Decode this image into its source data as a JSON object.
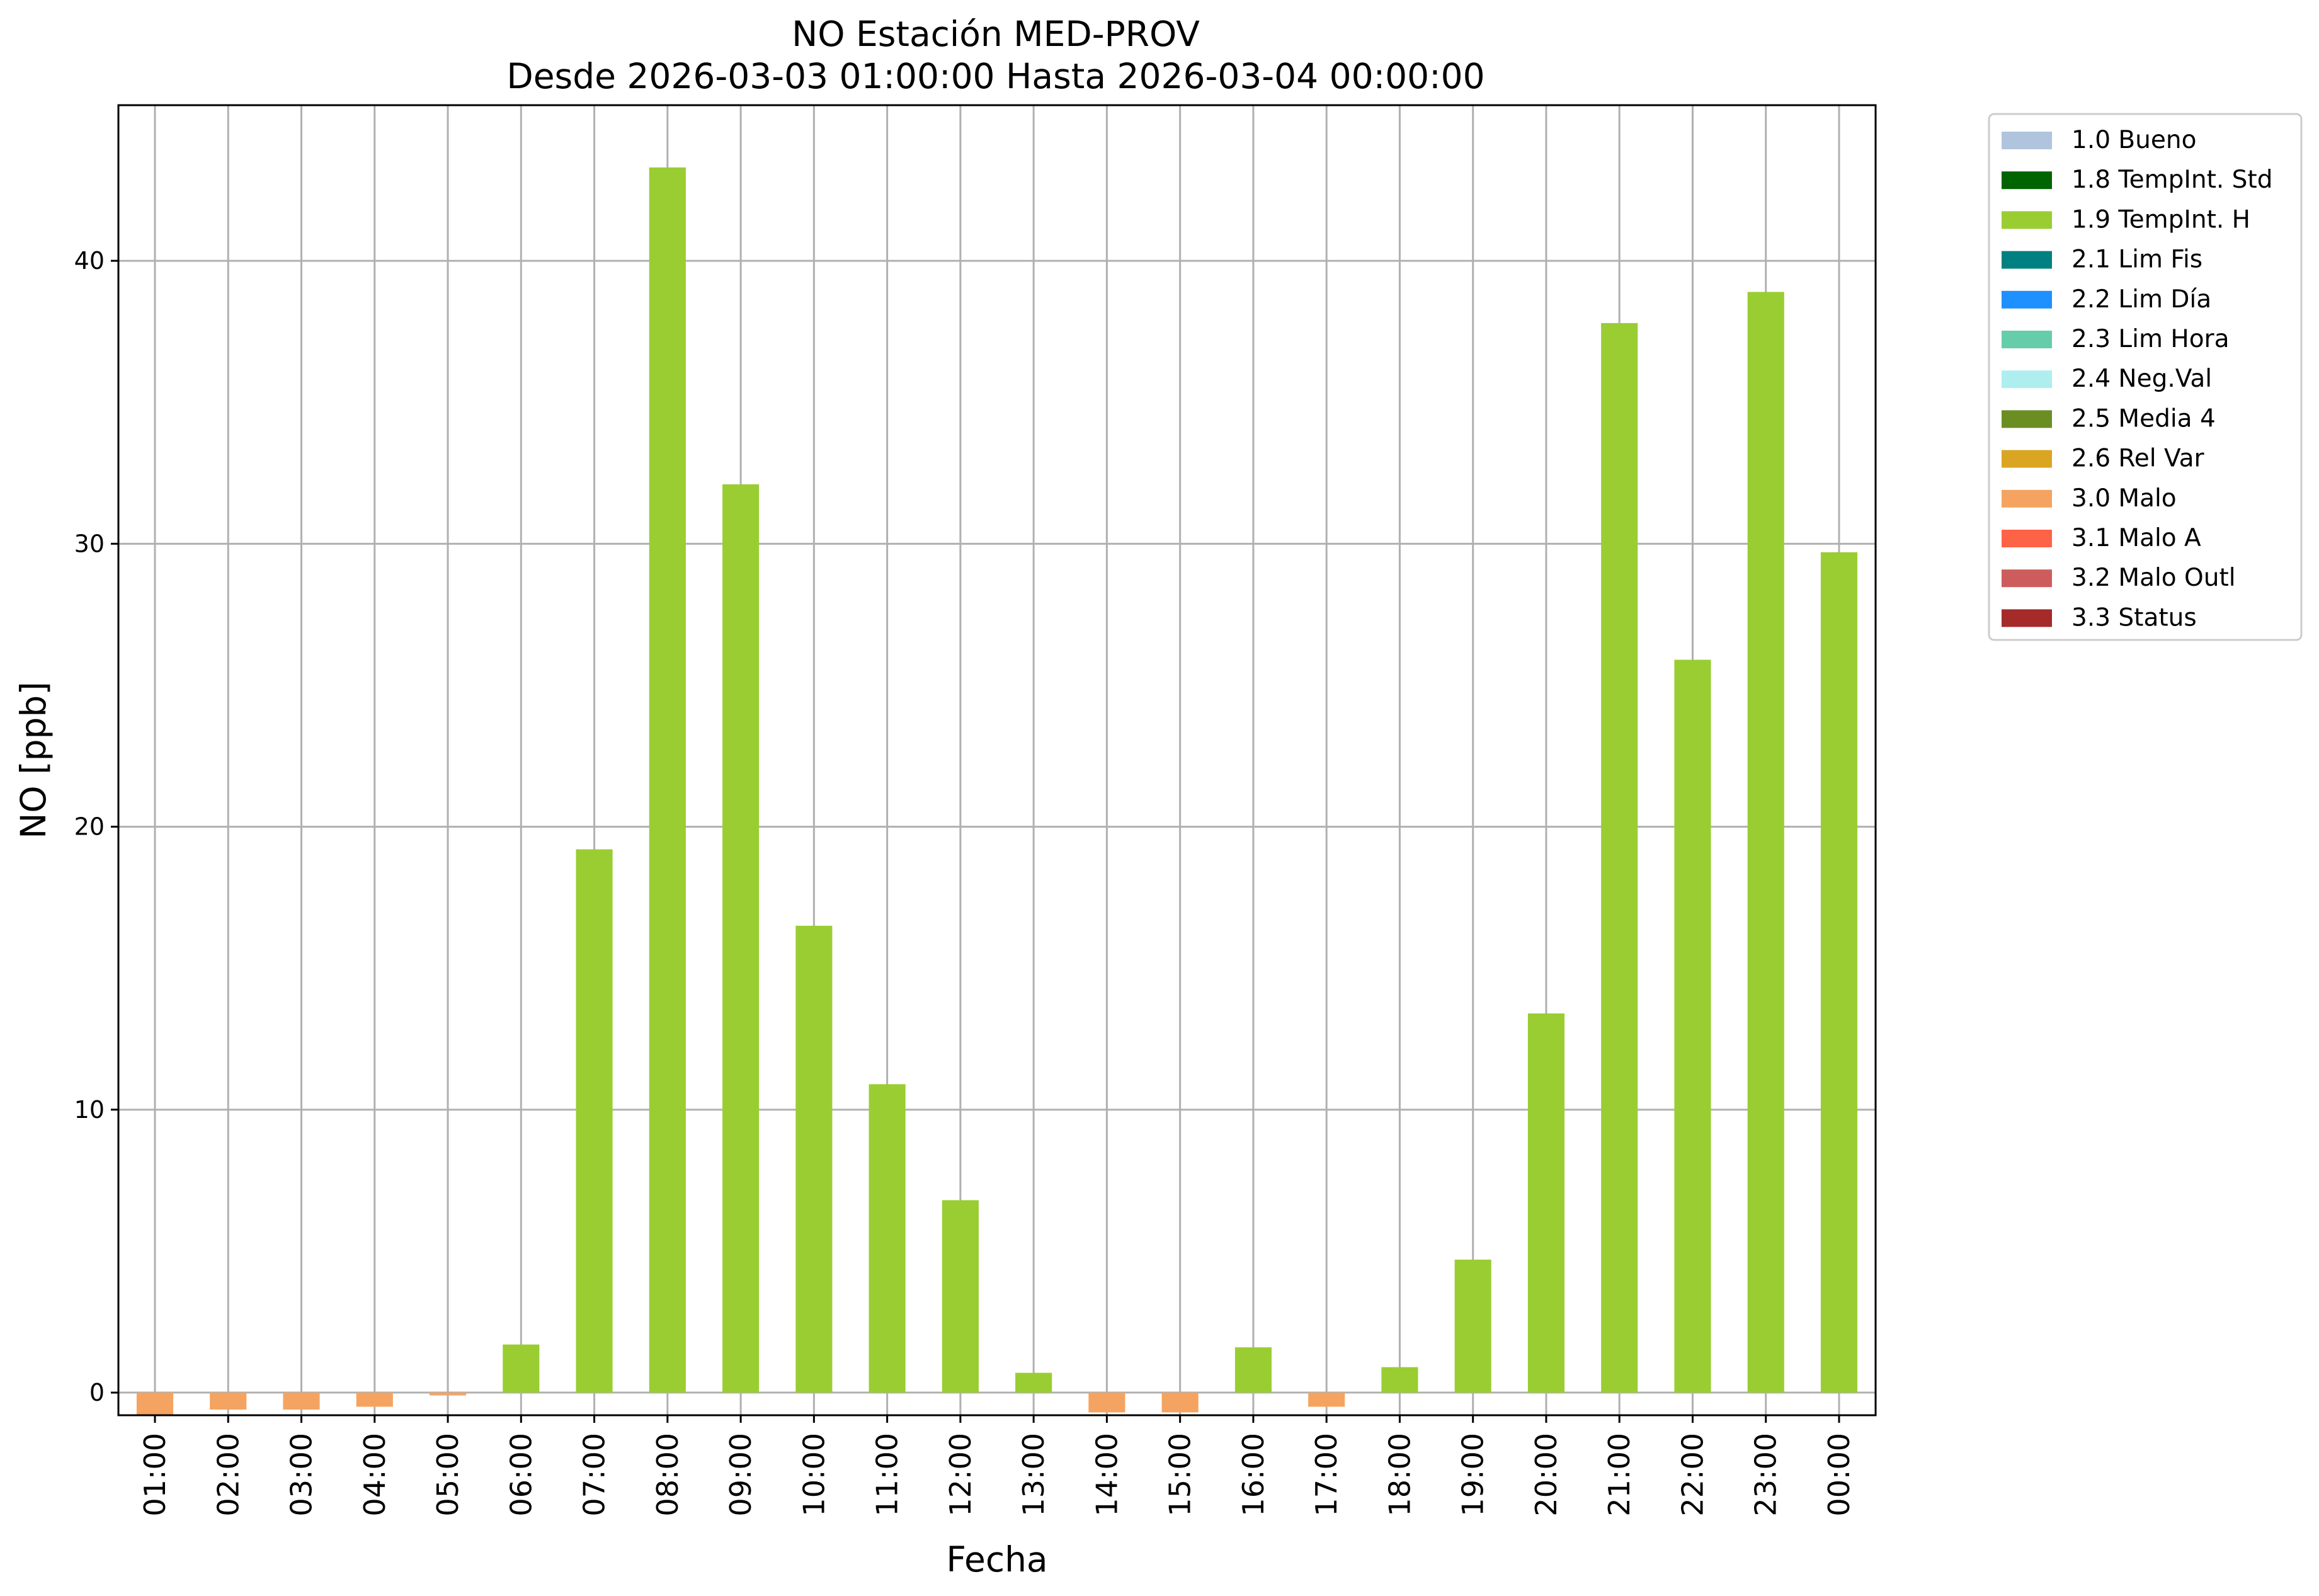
{
  "chart_data": {
    "type": "bar",
    "title": "NO Estación MED-PROV",
    "subtitle": "Desde 2026-03-03 01:00:00 Hasta 2026-03-04 00:00:00",
    "xlabel": "Fecha",
    "ylabel": "NO [ppb]",
    "ylim": [
      -0.8,
      45.5
    ],
    "yticks": [
      0,
      10,
      20,
      30,
      40
    ],
    "grid": true,
    "legend_position": "outside-right-top",
    "categories": [
      "01:00",
      "02:00",
      "03:00",
      "04:00",
      "05:00",
      "06:00",
      "07:00",
      "08:00",
      "09:00",
      "10:00",
      "11:00",
      "12:00",
      "13:00",
      "14:00",
      "15:00",
      "16:00",
      "17:00",
      "18:00",
      "19:00",
      "20:00",
      "21:00",
      "22:00",
      "23:00",
      "00:00"
    ],
    "values": [
      -0.8,
      -0.6,
      -0.6,
      -0.5,
      -0.1,
      1.7,
      19.2,
      43.3,
      32.1,
      16.5,
      10.9,
      6.8,
      0.7,
      -0.7,
      -0.7,
      1.6,
      -0.5,
      0.9,
      4.7,
      13.4,
      37.8,
      25.9,
      38.9,
      29.7
    ],
    "flags": [
      "3.0 Malo",
      "3.0 Malo",
      "3.0 Malo",
      "3.0 Malo",
      "3.0 Malo",
      "1.9 TempInt. H",
      "1.9 TempInt. H",
      "1.9 TempInt. H",
      "1.9 TempInt. H",
      "1.9 TempInt. H",
      "1.9 TempInt. H",
      "1.9 TempInt. H",
      "1.9 TempInt. H",
      "3.0 Malo",
      "3.0 Malo",
      "1.9 TempInt. H",
      "3.0 Malo",
      "1.9 TempInt. H",
      "1.9 TempInt. H",
      "1.9 TempInt. H",
      "1.9 TempInt. H",
      "1.9 TempInt. H",
      "1.9 TempInt. H",
      "1.9 TempInt. H"
    ],
    "legend": [
      {
        "label": "1.0 Bueno",
        "color": "#b0c4de"
      },
      {
        "label": "1.8 TempInt. Std",
        "color": "#006400"
      },
      {
        "label": "1.9 TempInt. H",
        "color": "#9acd32"
      },
      {
        "label": "2.1 Lim Fis",
        "color": "#008080"
      },
      {
        "label": "2.2 Lim Día",
        "color": "#1e90ff"
      },
      {
        "label": "2.3 Lim Hora",
        "color": "#66cdaa"
      },
      {
        "label": "2.4 Neg.Val",
        "color": "#afeeee"
      },
      {
        "label": "2.5 Media 4",
        "color": "#6b8e23"
      },
      {
        "label": "2.6 Rel Var",
        "color": "#daa520"
      },
      {
        "label": "3.0 Malo",
        "color": "#f4a460"
      },
      {
        "label": "3.1 Malo A",
        "color": "#ff6347"
      },
      {
        "label": "3.2 Malo Outl",
        "color": "#cd5c5c"
      },
      {
        "label": "3.3 Status",
        "color": "#a52a2a"
      }
    ]
  }
}
